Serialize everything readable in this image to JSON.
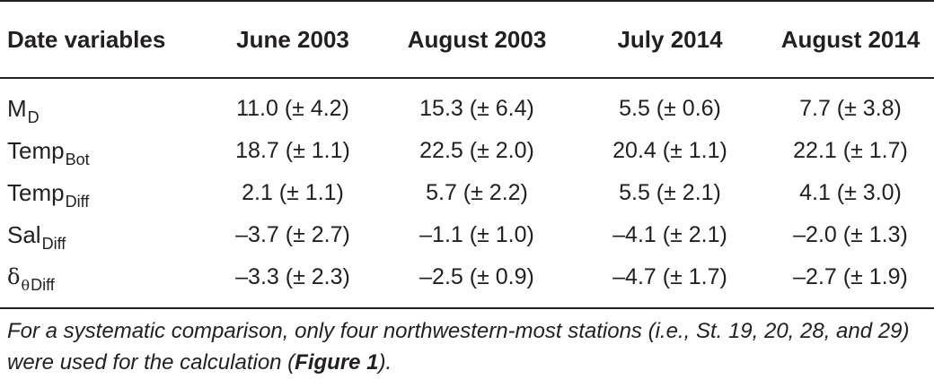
{
  "table": {
    "header": {
      "variable_col": "Date variables",
      "columns": [
        "June 2003",
        "August 2003",
        "July 2014",
        "August 2014"
      ]
    },
    "rows": [
      {
        "var_base": "M",
        "var_sub": "D",
        "values": [
          "11.0 (± 4.2)",
          "15.3 (± 6.4)",
          "5.5 (± 0.6)",
          "7.7 (± 3.8)"
        ]
      },
      {
        "var_base": "Temp",
        "var_sub": "Bot",
        "values": [
          "18.7 (± 1.1)",
          "22.5 (± 2.0)",
          "20.4 (± 1.1)",
          "22.1 (± 1.7)"
        ]
      },
      {
        "var_base": "Temp",
        "var_sub": "Diff",
        "values": [
          "2.1 (± 1.1)",
          "5.7 (± 2.2)",
          "5.5 (± 2.1)",
          "4.1 (± 3.0)"
        ]
      },
      {
        "var_base": "Sal",
        "var_sub": "Diff",
        "values": [
          "–3.7 (± 2.7)",
          "–1.1 (± 1.0)",
          "–4.1 (± 2.1)",
          "–2.0 (± 1.3)"
        ]
      },
      {
        "var_base": "δ",
        "var_sub_symbol": "θ",
        "var_sub": "Diff",
        "values": [
          "–3.3 (± 2.3)",
          "–2.5 (± 0.9)",
          "–4.7 (± 1.7)",
          "–2.7 (± 1.9)"
        ]
      }
    ]
  },
  "footnote": {
    "text_before": "For a systematic comparison, only four northwestern-most stations (i.e., St. 19, 20, 28, and 29) were used for the calculation (",
    "figure_ref": "Figure 1",
    "text_after": ")."
  }
}
